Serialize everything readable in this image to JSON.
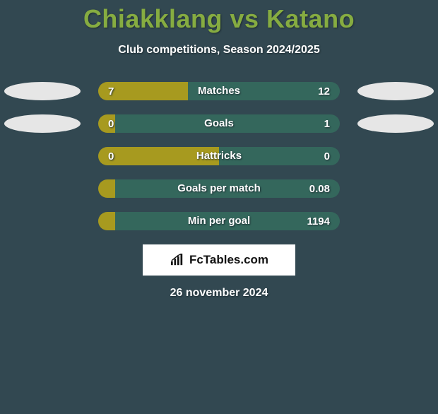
{
  "header": {
    "title": "Chiakklang vs Katano",
    "title_color": "#86ac41",
    "subtitle": "Club competitions, Season 2024/2025"
  },
  "colors": {
    "background": "#324851",
    "bar_left": "#a79a1f",
    "bar_right": "#34675c",
    "oval": "#e6e6e6",
    "text": "#ffffff"
  },
  "stats": [
    {
      "label": "Matches",
      "left_value": "7",
      "right_value": "12",
      "left_pct": 37,
      "show_ovals": true
    },
    {
      "label": "Goals",
      "left_value": "0",
      "right_value": "1",
      "left_pct": 7,
      "show_ovals": true
    },
    {
      "label": "Hattricks",
      "left_value": "0",
      "right_value": "0",
      "left_pct": 50,
      "show_ovals": false
    },
    {
      "label": "Goals per match",
      "left_value": "",
      "right_value": "0.08",
      "left_pct": 7,
      "show_ovals": false
    },
    {
      "label": "Min per goal",
      "left_value": "",
      "right_value": "1194",
      "left_pct": 7,
      "show_ovals": false
    }
  ],
  "footer": {
    "brand": "FcTables.com",
    "date": "26 november 2024"
  }
}
